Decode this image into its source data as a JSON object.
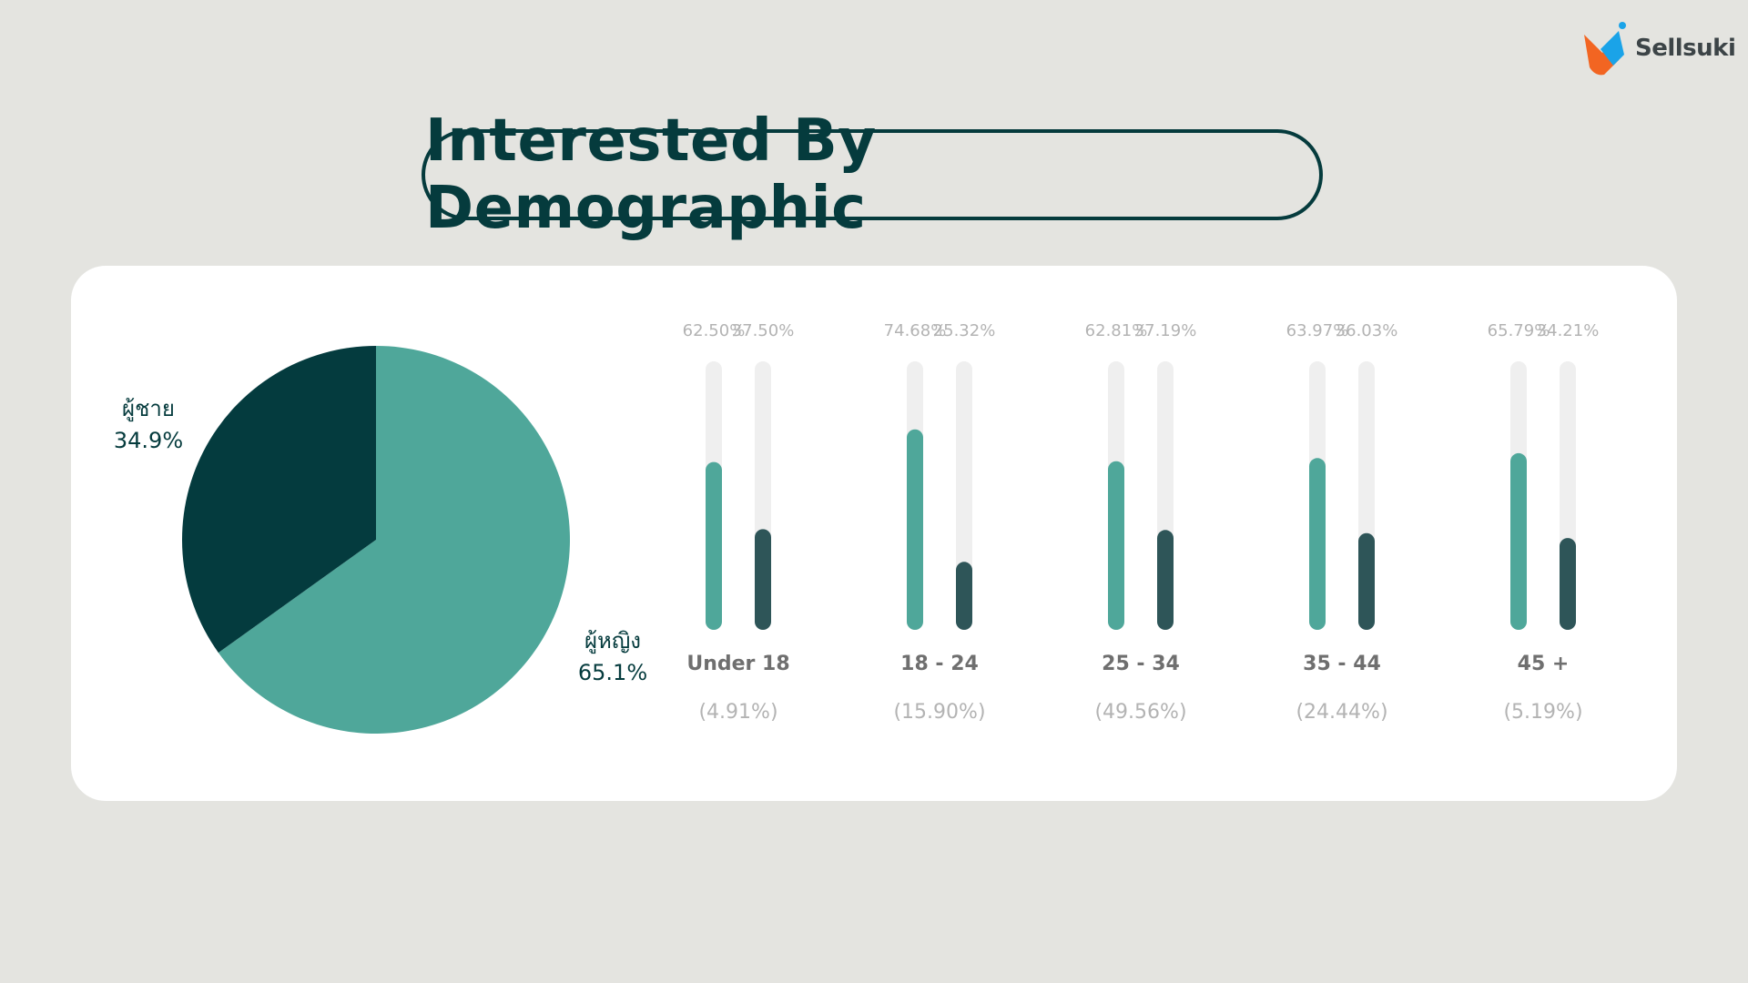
{
  "brand": {
    "name": "Sellsuki"
  },
  "title": "Interested By Demographic",
  "colors": {
    "background": "#e4e4e0",
    "dark": "#053b3d",
    "female": "#4fa79a",
    "male_pie": "#043b3e",
    "male_bar": "#2e5558",
    "track": "#efefef",
    "muted_text": "#b3b3b3",
    "group_text": "#6f6f6f"
  },
  "chart_data": [
    {
      "type": "pie",
      "slices": [
        {
          "label": "ผู้หญิง",
          "value": 65.1,
          "display": "65.1%"
        },
        {
          "label": "ผู้ชาย",
          "value": 34.9,
          "display": "34.9%"
        }
      ]
    },
    {
      "type": "bar",
      "ylim": [
        0,
        100
      ],
      "categories": [
        "Under 18",
        "18 - 24",
        "25 - 34",
        "35 - 44",
        "45 +"
      ],
      "shares": [
        "(4.91%)",
        "(15.90%)",
        "(49.56%)",
        "(24.44%)",
        "(5.19%)"
      ],
      "series": [
        {
          "values": [
            62.5,
            74.68,
            62.81,
            63.97,
            65.79
          ],
          "labels": [
            "62.50%",
            "74.68%",
            "62.81%",
            "63.97%",
            "65.79%"
          ]
        },
        {
          "values": [
            37.5,
            25.32,
            37.19,
            36.03,
            34.21
          ],
          "labels": [
            "37.50%",
            "25.32%",
            "37.19%",
            "36.03%",
            "34.21%"
          ]
        }
      ]
    }
  ]
}
